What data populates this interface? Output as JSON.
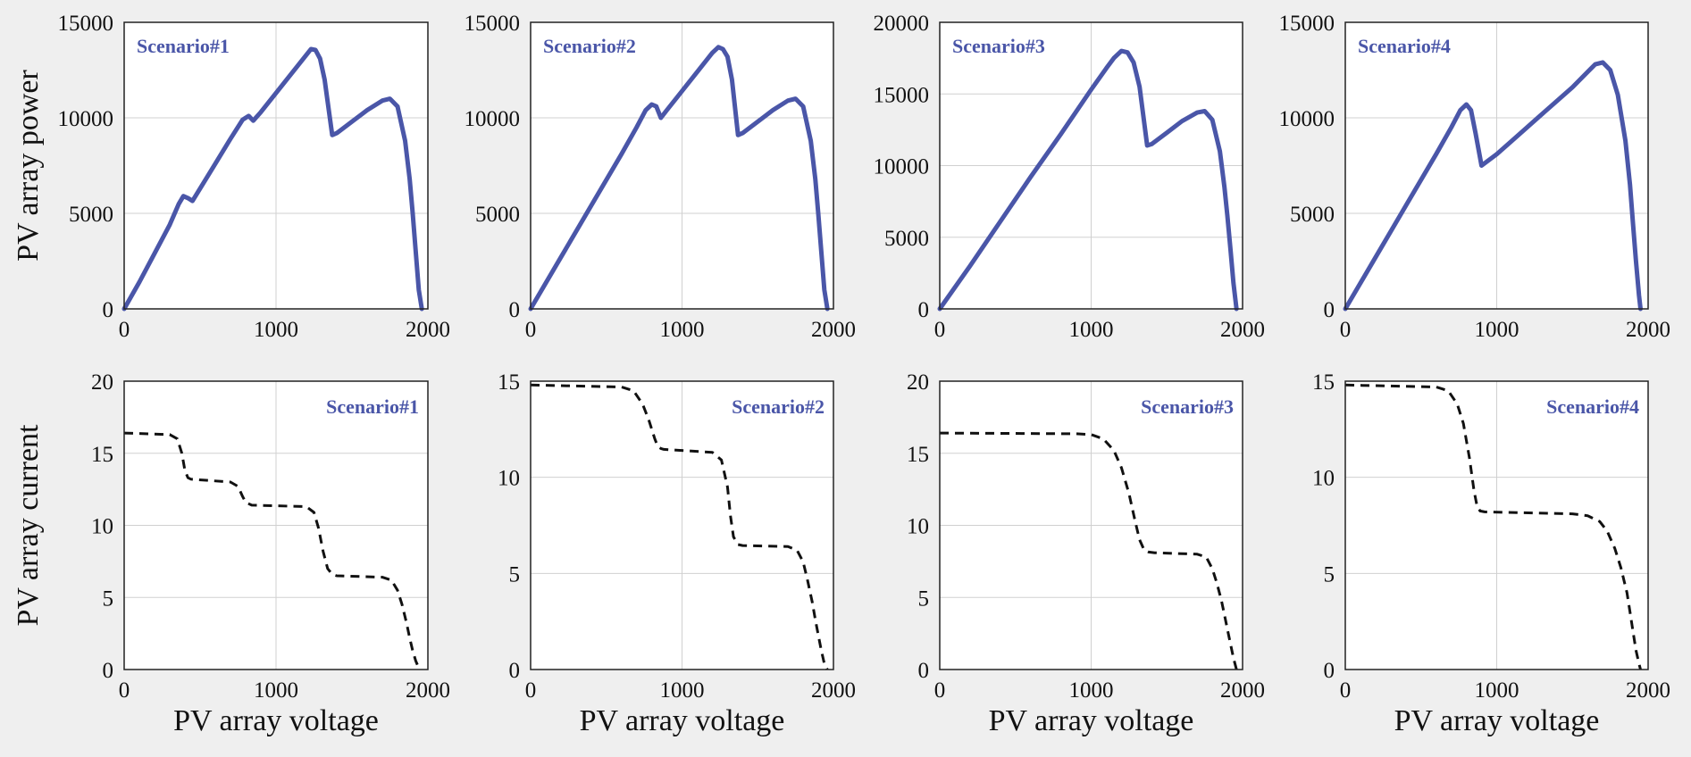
{
  "figure": {
    "background": "#efefef",
    "plot_background": "#ffffff",
    "grid_color": "#d0d0d0",
    "power_color": "#4a56a8",
    "current_color": "#111111",
    "legend_color": "#4a56a8"
  },
  "chart_data": [
    {
      "type": "line",
      "row": "power",
      "title": "Scenario#1",
      "legend_position": "top-left",
      "xlabel": "",
      "ylabel": "PV array power",
      "xlim": [
        0,
        2000
      ],
      "ylim": [
        0,
        15000
      ],
      "xticks": [
        "0",
        "1000",
        "2000"
      ],
      "yticks": [
        "0",
        "5000",
        "10000",
        "15000"
      ],
      "grid": true,
      "series": [
        {
          "style": "solid",
          "x": [
            0,
            100,
            200,
            300,
            360,
            390,
            420,
            450,
            500,
            600,
            700,
            780,
            820,
            850,
            900,
            1000,
            1100,
            1200,
            1230,
            1260,
            1290,
            1320,
            1370,
            1400,
            1500,
            1600,
            1700,
            1750,
            1800,
            1850,
            1880,
            1900,
            1920,
            1940,
            1960
          ],
          "y": [
            0,
            1400,
            2900,
            4400,
            5500,
            5900,
            5800,
            5650,
            6300,
            7600,
            8900,
            9900,
            10100,
            9850,
            10300,
            11300,
            12300,
            13300,
            13600,
            13550,
            13100,
            12000,
            9100,
            9200,
            9800,
            10400,
            10900,
            11000,
            10600,
            8800,
            6800,
            5000,
            3000,
            1000,
            0
          ]
        }
      ]
    },
    {
      "type": "line",
      "row": "power",
      "title": "Scenario#2",
      "legend_position": "top-left",
      "xlabel": "",
      "ylabel": "",
      "xlim": [
        0,
        2000
      ],
      "ylim": [
        0,
        15000
      ],
      "xticks": [
        "0",
        "1000",
        "2000"
      ],
      "yticks": [
        "0",
        "5000",
        "10000",
        "15000"
      ],
      "grid": true,
      "series": [
        {
          "style": "solid",
          "x": [
            0,
            200,
            400,
            600,
            700,
            760,
            800,
            830,
            860,
            900,
            1000,
            1100,
            1200,
            1240,
            1270,
            1300,
            1330,
            1370,
            1400,
            1500,
            1600,
            1700,
            1750,
            1800,
            1850,
            1880,
            1900,
            1920,
            1940,
            1960
          ],
          "y": [
            0,
            2700,
            5400,
            8100,
            9500,
            10400,
            10700,
            10600,
            10000,
            10400,
            11400,
            12400,
            13400,
            13700,
            13600,
            13200,
            12000,
            9100,
            9200,
            9800,
            10400,
            10900,
            11000,
            10600,
            8800,
            6800,
            5000,
            3000,
            1000,
            0
          ]
        }
      ]
    },
    {
      "type": "line",
      "row": "power",
      "title": "Scenario#3",
      "legend_position": "top-left",
      "xlabel": "",
      "ylabel": "",
      "xlim": [
        0,
        2000
      ],
      "ylim": [
        0,
        20000
      ],
      "xticks": [
        "0",
        "1000",
        "2000"
      ],
      "yticks": [
        "0",
        "5000",
        "10000",
        "15000",
        "20000"
      ],
      "grid": true,
      "series": [
        {
          "style": "solid",
          "x": [
            0,
            200,
            400,
            600,
            800,
            1000,
            1100,
            1150,
            1200,
            1240,
            1280,
            1320,
            1370,
            1400,
            1500,
            1600,
            1700,
            1750,
            1800,
            1850,
            1880,
            1900,
            1920,
            1940,
            1960
          ],
          "y": [
            0,
            3000,
            6100,
            9200,
            12200,
            15300,
            16800,
            17500,
            18000,
            17900,
            17200,
            15500,
            11400,
            11500,
            12300,
            13100,
            13700,
            13800,
            13200,
            11000,
            8500,
            6500,
            4200,
            1800,
            0
          ]
        }
      ]
    },
    {
      "type": "line",
      "row": "power",
      "title": "Scenario#4",
      "legend_position": "top-left",
      "xlabel": "",
      "ylabel": "",
      "xlim": [
        0,
        2000
      ],
      "ylim": [
        0,
        15000
      ],
      "xticks": [
        "0",
        "1000",
        "2000"
      ],
      "yticks": [
        "0",
        "5000",
        "10000",
        "15000"
      ],
      "grid": true,
      "series": [
        {
          "style": "solid",
          "x": [
            0,
            200,
            400,
            600,
            700,
            760,
            800,
            830,
            860,
            900,
            1000,
            1100,
            1200,
            1300,
            1400,
            1500,
            1600,
            1650,
            1700,
            1750,
            1800,
            1850,
            1880,
            1900,
            1920,
            1940,
            1950
          ],
          "y": [
            0,
            2700,
            5400,
            8100,
            9500,
            10400,
            10700,
            10400,
            9200,
            7500,
            8100,
            8800,
            9500,
            10200,
            10900,
            11600,
            12400,
            12800,
            12900,
            12500,
            11200,
            8800,
            6500,
            4500,
            2500,
            700,
            0
          ]
        }
      ]
    },
    {
      "type": "line",
      "row": "current",
      "title": "Scenario#1",
      "legend_position": "top-right",
      "xlabel": "PV array voltage",
      "ylabel": "PV array current",
      "xlim": [
        0,
        2000
      ],
      "ylim": [
        0,
        20
      ],
      "xticks": [
        "0",
        "1000",
        "2000"
      ],
      "yticks": [
        "0",
        "5",
        "10",
        "15",
        "20"
      ],
      "grid": true,
      "series": [
        {
          "style": "dashed",
          "x": [
            0,
            300,
            350,
            380,
            400,
            420,
            440,
            700,
            750,
            780,
            800,
            820,
            840,
            1200,
            1250,
            1280,
            1310,
            1340,
            1370,
            1400,
            1700,
            1760,
            1800,
            1830,
            1860,
            1880,
            1900,
            1920,
            1940,
            1950
          ],
          "y": [
            16.4,
            16.3,
            16.0,
            15.0,
            13.8,
            13.3,
            13.2,
            13.0,
            12.7,
            12.0,
            11.6,
            11.5,
            11.4,
            11.3,
            10.9,
            9.8,
            8.2,
            7.0,
            6.6,
            6.5,
            6.4,
            6.2,
            5.5,
            4.5,
            3.2,
            2.2,
            1.3,
            0.6,
            0.1,
            0
          ]
        }
      ]
    },
    {
      "type": "line",
      "row": "current",
      "title": "Scenario#2",
      "legend_position": "top-right",
      "xlabel": "PV array voltage",
      "ylabel": "",
      "xlim": [
        0,
        2000
      ],
      "ylim": [
        0,
        15
      ],
      "xticks": [
        "0",
        "1000",
        "2000"
      ],
      "yticks": [
        "0",
        "5",
        "10",
        "15"
      ],
      "grid": true,
      "series": [
        {
          "style": "dashed",
          "x": [
            0,
            600,
            680,
            740,
            780,
            820,
            840,
            860,
            880,
            1200,
            1260,
            1300,
            1320,
            1340,
            1370,
            1400,
            1700,
            1760,
            1800,
            1830,
            1860,
            1880,
            1900,
            1920,
            1940,
            1960
          ],
          "y": [
            14.8,
            14.7,
            14.5,
            13.8,
            13.0,
            12.0,
            11.6,
            11.5,
            11.45,
            11.3,
            10.9,
            9.5,
            8.0,
            6.9,
            6.5,
            6.45,
            6.4,
            6.2,
            5.6,
            4.6,
            3.5,
            2.6,
            1.8,
            1.0,
            0.3,
            0
          ]
        }
      ]
    },
    {
      "type": "line",
      "row": "current",
      "title": "Scenario#3",
      "legend_position": "top-right",
      "xlabel": "PV array voltage",
      "ylabel": "",
      "xlim": [
        0,
        2000
      ],
      "ylim": [
        0,
        20
      ],
      "xticks": [
        "0",
        "1000",
        "2000"
      ],
      "yticks": [
        "0",
        "5",
        "10",
        "15",
        "20"
      ],
      "grid": true,
      "series": [
        {
          "style": "dashed",
          "x": [
            0,
            900,
            1000,
            1080,
            1150,
            1200,
            1250,
            1290,
            1320,
            1350,
            1380,
            1420,
            1700,
            1760,
            1800,
            1830,
            1860,
            1880,
            1900,
            1920,
            1940,
            1960
          ],
          "y": [
            16.4,
            16.35,
            16.3,
            16.0,
            15.2,
            14.0,
            12.2,
            10.3,
            9.0,
            8.3,
            8.15,
            8.1,
            8.0,
            7.8,
            7.0,
            6.0,
            4.8,
            3.8,
            2.8,
            1.8,
            0.8,
            0
          ]
        }
      ]
    },
    {
      "type": "line",
      "row": "current",
      "title": "Scenario#4",
      "legend_position": "top-right",
      "xlabel": "PV array voltage",
      "ylabel": "",
      "xlim": [
        0,
        2000
      ],
      "ylim": [
        0,
        15
      ],
      "xticks": [
        "0",
        "1000",
        "2000"
      ],
      "yticks": [
        "0",
        "5",
        "10",
        "15"
      ],
      "grid": true,
      "series": [
        {
          "style": "dashed",
          "x": [
            0,
            600,
            680,
            740,
            780,
            820,
            850,
            870,
            890,
            920,
            1500,
            1600,
            1680,
            1730,
            1780,
            1820,
            1860,
            1880,
            1900,
            1920,
            1940,
            1950
          ],
          "y": [
            14.8,
            14.7,
            14.5,
            13.8,
            12.8,
            11.0,
            9.3,
            8.5,
            8.25,
            8.2,
            8.1,
            8.0,
            7.7,
            7.2,
            6.3,
            5.3,
            4.0,
            3.0,
            2.0,
            1.0,
            0.3,
            0
          ]
        }
      ]
    }
  ]
}
